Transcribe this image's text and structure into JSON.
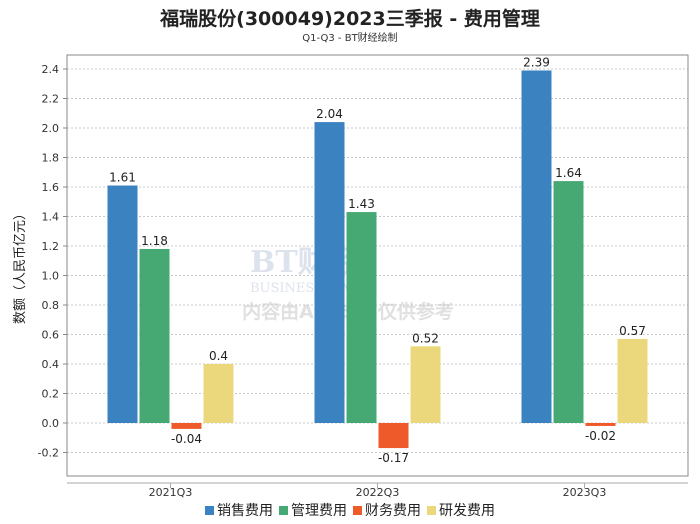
{
  "chart_data": {
    "type": "bar",
    "title": "福瑞股份(300049)2023三季报 - 费用管理",
    "subtitle": "Q1-Q3 - BT财经绘制",
    "xlabel": "",
    "ylabel": "数额（人民币亿元）",
    "ylim": [
      -0.36,
      2.5
    ],
    "yticks": [
      "-0.2",
      "0.0",
      "0.2",
      "0.4",
      "0.6",
      "0.8",
      "1.0",
      "1.2",
      "1.4",
      "1.6",
      "1.8",
      "2.0",
      "2.2",
      "2.4"
    ],
    "grid": true,
    "legend_position": "bottom",
    "categories": [
      "2021Q3",
      "2022Q3",
      "2023Q3"
    ],
    "series": [
      {
        "name": "销售费用",
        "color": "#3a82c0",
        "values": [
          1.61,
          2.04,
          2.39
        ],
        "labels": [
          "1.61",
          "2.04",
          "2.39"
        ]
      },
      {
        "name": "管理费用",
        "color": "#46a872",
        "values": [
          1.18,
          1.43,
          1.64
        ],
        "labels": [
          "1.18",
          "1.43",
          "1.64"
        ]
      },
      {
        "name": "财务费用",
        "color": "#ef5a2a",
        "values": [
          -0.04,
          -0.17,
          -0.02
        ],
        "labels": [
          "-0.04",
          "-0.17",
          "-0.02"
        ]
      },
      {
        "name": "研发费用",
        "color": "#ecd87c",
        "values": [
          0.4,
          0.52,
          0.57
        ],
        "labels": [
          "0.4",
          "0.52",
          "0.57"
        ]
      }
    ]
  },
  "watermark": {
    "brand": "BT财经",
    "brand_en": "BUSINESS TIMES",
    "notice": "内容由AI生成，仅供参考"
  }
}
